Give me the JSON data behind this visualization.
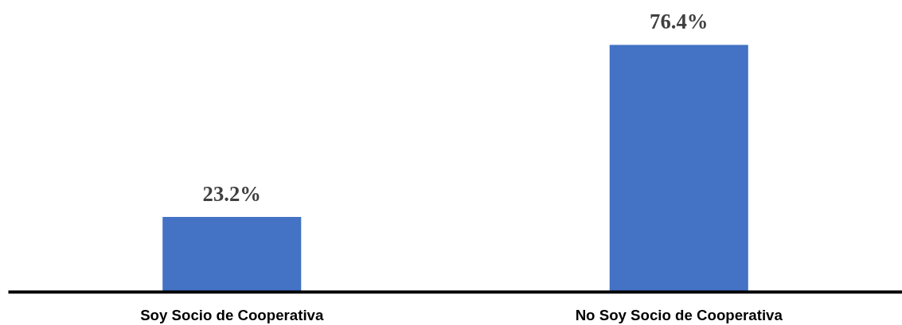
{
  "chart_data": {
    "type": "bar",
    "categories": [
      "Soy Socio de Cooperativa",
      "No Soy Socio de Cooperativa"
    ],
    "values": [
      23.2,
      76.4
    ],
    "value_labels": [
      "23.2%",
      "76.4%"
    ],
    "color": "#4472c4"
  }
}
